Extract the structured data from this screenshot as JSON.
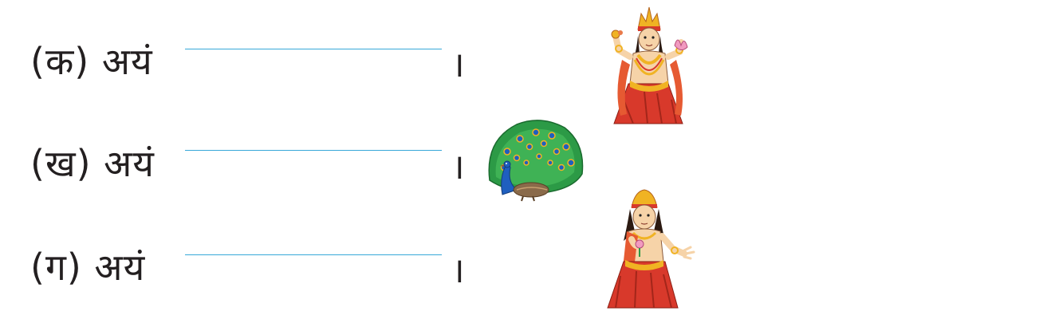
{
  "exercise": {
    "items": [
      {
        "marker": "(क)",
        "word": "अयं",
        "danda": "।",
        "picture": "deity-with-lotus-icon"
      },
      {
        "marker": "(ख)",
        "word": "अयं",
        "danda": "।",
        "picture": "peacock-icon"
      },
      {
        "marker": "(ग)",
        "word": "अयं",
        "danda": "।",
        "picture": "young-deity-icon"
      }
    ]
  },
  "colors": {
    "text": "#231f20",
    "answer_line": "#37a8d8",
    "robe": "#d8392b",
    "gold": "#f0b323",
    "skin": "#f6d3a8",
    "peacock_green": "#1f8a3a",
    "peacock_blue": "#1f5fbf"
  }
}
